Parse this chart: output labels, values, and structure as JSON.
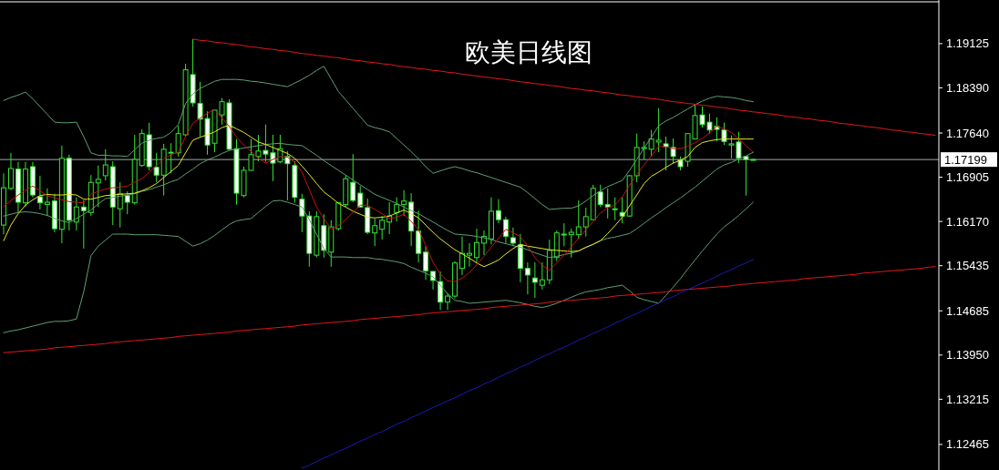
{
  "chart_data": {
    "type": "candlestick",
    "title": "欧美日线图",
    "categories": [
      null,
      null,
      null,
      null,
      null,
      null,
      null,
      null,
      null,
      null,
      null,
      null,
      null,
      null,
      null,
      null,
      null,
      null,
      null,
      null,
      null,
      null,
      null,
      null,
      null,
      null,
      null,
      null,
      null,
      null,
      null,
      null,
      null,
      null,
      null,
      null,
      null,
      null,
      null,
      null,
      null,
      null,
      null,
      null,
      null,
      null,
      null,
      null,
      null,
      null,
      null,
      null,
      null,
      null,
      null,
      null,
      null,
      null,
      null,
      null,
      null,
      null,
      null,
      null,
      null,
      null,
      null,
      null,
      null,
      null,
      null,
      null,
      null,
      null,
      null,
      null,
      null,
      null,
      null,
      null,
      null,
      null,
      null,
      null,
      null,
      null,
      null,
      null,
      null,
      null,
      null,
      null,
      null,
      null,
      null,
      null,
      null,
      null,
      null,
      null,
      null,
      null,
      null,
      null,
      null,
      null,
      null,
      null,
      null,
      null,
      null,
      null,
      null,
      null,
      null,
      null,
      null,
      null,
      null,
      null,
      null,
      null,
      null,
      null,
      null,
      null,
      null,
      null,
      null
    ],
    "ylim": [
      1.1204,
      1.1985
    ],
    "yticks": [
      1.19125,
      {
        "value": 1.1839,
        "label": "1.18390"
      },
      {
        "value": 1.1764,
        "label": "1.17640"
      },
      1.16905,
      {
        "value": 1.1617,
        "label": "1.16170"
      },
      1.15435,
      1.14685,
      {
        "value": 1.1395,
        "label": "1.13950"
      },
      1.13215,
      1.12465
    ],
    "tick_labels": "y",
    "ref_lines": [
      {
        "axis": "y",
        "value": 1.17199,
        "label": "1.17199",
        "color": "#a0a8b0"
      }
    ],
    "series": [
      {
        "type": "line",
        "color": "#5f9f73",
        "values": [
          1.1818,
          1.1823,
          1.1827,
          1.1832,
          1.1821,
          1.1808,
          1.1795,
          1.1782,
          1.1781,
          1.1781,
          1.1782,
          1.1758,
          1.1731,
          1.1727,
          1.1727,
          1.1726,
          1.1726,
          1.1725,
          1.1736,
          1.1747,
          1.1752,
          1.1755,
          1.1757,
          1.1765,
          1.1778,
          1.1813,
          1.1829,
          1.1838,
          1.1844,
          1.185,
          1.1853,
          1.1853,
          1.1853,
          1.1852,
          1.185,
          1.1849,
          1.1847,
          1.1845,
          1.1843,
          1.1841,
          1.1847,
          1.1853,
          1.186,
          1.1868,
          1.1875,
          1.1854,
          1.1833,
          1.1819,
          1.1805,
          1.1791,
          1.1777,
          1.1773,
          1.177,
          1.1766,
          1.1755,
          1.1744,
          1.1733,
          1.1721,
          1.1708,
          1.1697,
          1.1701,
          1.1705,
          1.1708,
          1.1705,
          1.1701,
          1.1698,
          1.1694,
          1.169,
          1.1686,
          1.1682,
          1.1678,
          1.1674,
          1.1665,
          1.1655,
          1.1645,
          1.1637,
          1.1638,
          1.1639,
          1.1639,
          1.1643,
          1.1651,
          1.166,
          1.1668,
          1.1675,
          1.168,
          1.1685,
          1.1702,
          1.172,
          1.1739,
          1.1757,
          1.1776,
          1.1784,
          1.179,
          1.1797,
          1.1804,
          1.1811,
          1.1817,
          1.1822,
          1.1825,
          1.1824,
          1.1823,
          1.1821,
          1.1818,
          1.1816,
          null,
          null,
          null,
          null,
          null,
          null,
          null,
          null,
          null,
          null,
          null,
          null,
          null,
          null,
          null,
          null,
          null,
          null,
          null,
          null,
          null,
          null,
          null,
          null,
          null
        ]
      },
      {
        "type": "line",
        "color": "#5f9f73",
        "values": [
          1.1626,
          1.1629,
          1.1632,
          1.1633,
          1.1632,
          1.163,
          1.1627,
          1.1622,
          1.1618,
          1.1615,
          1.1622,
          1.1629,
          1.1636,
          1.1646,
          1.1655,
          1.1657,
          1.1659,
          1.1661,
          1.1663,
          1.1667,
          1.167,
          1.1674,
          1.1678,
          1.1683,
          1.1687,
          1.1696,
          1.1704,
          1.1713,
          1.1719,
          1.1724,
          1.173,
          1.1735,
          1.1737,
          1.1739,
          1.1741,
          1.1743,
          1.1745,
          1.1746,
          1.1747,
          1.1745,
          1.1744,
          1.1743,
          1.1735,
          1.1727,
          1.1718,
          1.171,
          1.1702,
          1.1694,
          1.1686,
          1.1678,
          1.167,
          1.1662,
          1.1657,
          1.1652,
          1.1647,
          1.1641,
          1.1635,
          1.163,
          1.1623,
          1.1616,
          1.1609,
          1.1602,
          1.1596,
          1.1595,
          1.1594,
          1.1592,
          1.159,
          1.1587,
          1.1583,
          1.158,
          1.1577,
          1.1574,
          1.157,
          1.1565,
          1.1561,
          1.1557,
          1.1559,
          1.1562,
          1.1564,
          1.1568,
          1.1574,
          1.1579,
          1.1585,
          1.1589,
          1.1591,
          1.1594,
          1.1597,
          1.1605,
          1.1614,
          1.1623,
          1.1631,
          1.164,
          1.1648,
          1.1656,
          1.1665,
          1.1674,
          1.1684,
          1.1694,
          1.1704,
          1.1711,
          1.1715,
          1.1721,
          1.1726,
          1.1732,
          null,
          null,
          null,
          null,
          null,
          null,
          null,
          null,
          null,
          null,
          null,
          null,
          null,
          null,
          null,
          null,
          null,
          null,
          null,
          null,
          null,
          null,
          null,
          null,
          null
        ]
      },
      {
        "type": "line",
        "color": "#5f9f73",
        "values": [
          1.1432,
          1.1435,
          1.1437,
          1.144,
          1.1443,
          1.1446,
          1.1449,
          1.1451,
          1.1451,
          1.1452,
          1.1455,
          1.15,
          1.156,
          1.1576,
          1.1586,
          1.1596,
          1.1596,
          1.1596,
          1.1595,
          1.1595,
          1.1595,
          1.1595,
          1.1594,
          1.1593,
          1.1592,
          1.1584,
          1.1576,
          1.158,
          1.1586,
          1.1594,
          1.1603,
          1.1612,
          1.1618,
          1.162,
          1.1622,
          1.1632,
          1.1642,
          1.1651,
          1.1652,
          1.1649,
          1.1645,
          1.1641,
          1.162,
          1.1596,
          1.1572,
          1.1558,
          1.1558,
          1.1558,
          1.1557,
          1.1557,
          1.1557,
          1.1555,
          1.1554,
          1.1552,
          1.155,
          1.1547,
          1.1541,
          1.1536,
          1.1531,
          1.1525,
          1.1511,
          1.1497,
          1.1486,
          1.1484,
          1.1481,
          1.1482,
          1.1483,
          1.1484,
          1.1485,
          1.1486,
          1.1484,
          1.1482,
          1.1479,
          1.1476,
          1.1474,
          1.1477,
          1.1481,
          1.1486,
          1.1491,
          1.1496,
          1.15,
          1.1502,
          1.1504,
          1.1507,
          1.1509,
          1.1511,
          1.1502,
          1.1491,
          1.1487,
          1.1484,
          1.1481,
          1.1494,
          1.1508,
          1.1522,
          1.1538,
          1.1553,
          1.1568,
          1.1582,
          1.1596,
          1.1608,
          1.1617,
          1.1627,
          1.1638,
          1.1649,
          null,
          null,
          null,
          null,
          null,
          null,
          null,
          null,
          null,
          null,
          null,
          null,
          null,
          null,
          null,
          null,
          null,
          null,
          null,
          null,
          null,
          null,
          null,
          null,
          null
        ]
      },
      {
        "type": "line",
        "color": "#e8e820",
        "values": [
          1.1585,
          1.1611,
          1.163,
          1.1644,
          1.1653,
          1.166,
          1.1662,
          1.1661,
          1.1661,
          1.1662,
          1.1661,
          1.1654,
          1.1654,
          1.1657,
          1.166,
          1.1661,
          1.1662,
          1.1663,
          1.1664,
          1.1668,
          1.1673,
          1.168,
          1.169,
          1.17,
          1.171,
          1.1731,
          1.1752,
          1.1757,
          1.1761,
          1.1766,
          1.1773,
          1.1777,
          1.1771,
          1.1765,
          1.1757,
          1.1749,
          1.1745,
          1.174,
          1.1735,
          1.173,
          1.1722,
          1.1709,
          1.1695,
          1.168,
          1.1666,
          1.1657,
          1.1647,
          1.1641,
          1.1634,
          1.1629,
          1.1624,
          1.1623,
          1.1624,
          1.1626,
          1.1631,
          1.1636,
          1.163,
          1.1623,
          1.1611,
          1.1599,
          1.1588,
          1.1579,
          1.157,
          1.1563,
          1.1556,
          1.1548,
          1.1542,
          1.1547,
          1.1553,
          1.1563,
          1.1572,
          1.1579,
          1.1576,
          1.1574,
          1.1572,
          1.157,
          1.1569,
          1.1568,
          1.1567,
          1.1568,
          1.1574,
          1.1579,
          1.1585,
          1.1597,
          1.161,
          1.1624,
          1.1643,
          1.1661,
          1.168,
          1.1692,
          1.1699,
          1.1707,
          1.1714,
          1.1719,
          1.1725,
          1.174,
          1.1748,
          1.1751,
          1.1753,
          1.1754,
          1.1754,
          1.1754,
          1.1754,
          1.1754,
          null,
          null,
          null,
          null,
          null,
          null,
          null,
          null,
          null,
          null,
          null,
          null,
          null,
          null,
          null,
          null,
          null,
          null,
          null,
          null,
          null,
          null,
          null,
          null,
          null
        ]
      },
      {
        "type": "line",
        "color": "#c81010",
        "values": [
          1.1642,
          1.1652,
          1.1661,
          1.1669,
          1.1676,
          1.1668,
          1.166,
          1.1656,
          1.1653,
          1.165,
          1.1649,
          1.1648,
          1.1662,
          1.1667,
          1.1671,
          1.1673,
          1.1674,
          1.1676,
          1.1682,
          1.1688,
          1.1699,
          1.171,
          1.1721,
          1.1728,
          1.1732,
          1.1758,
          1.178,
          1.1789,
          1.1797,
          1.1803,
          1.1789,
          1.1775,
          1.1757,
          1.1744,
          1.1733,
          1.1722,
          1.1714,
          1.172,
          1.1725,
          1.1724,
          1.1715,
          1.1699,
          1.167,
          1.1641,
          1.1622,
          1.1604,
          1.161,
          1.162,
          1.1632,
          1.1644,
          1.1644,
          1.1637,
          1.163,
          1.1622,
          1.1624,
          1.1629,
          1.1617,
          1.1604,
          1.1577,
          1.1549,
          1.153,
          1.1518,
          1.1517,
          1.1523,
          1.1532,
          1.1545,
          1.1559,
          1.1574,
          1.1589,
          1.1604,
          1.1598,
          1.1592,
          1.1576,
          1.1557,
          1.1544,
          1.1536,
          1.1548,
          1.1561,
          1.1575,
          1.1589,
          1.1603,
          1.1617,
          1.1631,
          1.164,
          1.1644,
          1.1658,
          1.1677,
          1.1695,
          1.1711,
          1.1726,
          1.1742,
          1.1741,
          1.1738,
          1.1738,
          1.1742,
          1.1748,
          1.1755,
          1.1764,
          1.1775,
          1.1771,
          1.1765,
          1.1754,
          1.1743,
          1.1732,
          null,
          null,
          null,
          null,
          null,
          null,
          null,
          null,
          null,
          null,
          null,
          null,
          null,
          null,
          null,
          null,
          null,
          null,
          null,
          null,
          null,
          null,
          null,
          null,
          null
        ]
      },
      {
        "type": "line",
        "color": "#e01818",
        "values": [
          null,
          null,
          null,
          null,
          null,
          null,
          null,
          null,
          null,
          null,
          null,
          null,
          null,
          null,
          null,
          null,
          null,
          null,
          null,
          null,
          null,
          null,
          null,
          null,
          null,
          null,
          1.192,
          1.1918,
          1.1917,
          1.1915,
          1.1914,
          1.1912,
          1.1911,
          1.1909,
          1.1907,
          1.1906,
          1.1904,
          1.1903,
          1.1901,
          1.19,
          1.1898,
          1.1896,
          1.1895,
          1.1893,
          1.1892,
          1.189,
          1.1889,
          1.1887,
          1.1885,
          1.1884,
          1.1882,
          1.1881,
          1.1879,
          1.1878,
          1.1876,
          1.1874,
          1.1873,
          1.1871,
          1.187,
          1.1868,
          1.1867,
          1.1865,
          1.1864,
          1.1862,
          1.186,
          1.1859,
          1.1857,
          1.1856,
          1.1854,
          1.1853,
          1.1851,
          1.1849,
          1.1848,
          1.1846,
          1.1845,
          1.1843,
          1.1842,
          1.184,
          1.1838,
          1.1837,
          1.1835,
          1.1834,
          1.1832,
          1.1831,
          1.1829,
          1.1827,
          1.1826,
          1.1824,
          1.1823,
          1.1821,
          1.182,
          1.1818,
          1.1816,
          1.1815,
          1.1813,
          1.1812,
          1.181,
          1.1809,
          1.1807,
          1.1806,
          1.1804,
          1.1802,
          1.1801,
          1.1799,
          1.1798,
          1.1796,
          1.1795,
          1.1793,
          1.1791,
          1.179,
          1.1788,
          1.1787,
          1.1785,
          1.1784,
          1.1782,
          1.178,
          1.1779,
          1.1777,
          1.1776,
          1.1774,
          1.1773,
          1.1771,
          1.1769,
          1.1768,
          1.1766,
          1.1765,
          1.1763,
          1.1762,
          1.176
        ]
      },
      {
        "type": "line",
        "color": "#e01818",
        "values": [
          1.1399,
          1.14,
          1.1401,
          1.1402,
          1.1403,
          1.1404,
          1.1405,
          1.1407,
          1.1408,
          1.1409,
          1.141,
          1.1411,
          1.1412,
          1.1413,
          1.1414,
          1.1416,
          1.1417,
          1.1418,
          1.1419,
          1.142,
          1.1421,
          1.1422,
          1.1423,
          1.1424,
          1.1426,
          1.1427,
          1.1428,
          1.1429,
          1.143,
          1.1431,
          1.1432,
          1.1433,
          1.1435,
          1.1436,
          1.1437,
          1.1438,
          1.1439,
          1.144,
          1.1441,
          1.1442,
          1.1443,
          1.1445,
          1.1446,
          1.1447,
          1.1448,
          1.1449,
          1.145,
          1.1451,
          1.1452,
          1.1454,
          1.1455,
          1.1456,
          1.1457,
          1.1458,
          1.1459,
          1.146,
          1.1461,
          1.1462,
          1.1464,
          1.1465,
          1.1466,
          1.1467,
          1.1468,
          1.1469,
          1.147,
          1.1471,
          1.1472,
          1.1474,
          1.1475,
          1.1476,
          1.1477,
          1.1478,
          1.1479,
          1.148,
          1.1481,
          1.1483,
          1.1484,
          1.1485,
          1.1486,
          1.1487,
          1.1488,
          1.1489,
          1.149,
          1.1491,
          1.1493,
          1.1494,
          1.1495,
          1.1496,
          1.1497,
          1.1498,
          1.1499,
          1.15,
          1.1502,
          1.1503,
          1.1504,
          1.1505,
          1.1506,
          1.1507,
          1.1508,
          1.1509,
          1.151,
          1.1512,
          1.1513,
          1.1514,
          1.1515,
          1.1516,
          1.1517,
          1.1518,
          1.1519,
          1.152,
          1.1522,
          1.1523,
          1.1524,
          1.1525,
          1.1526,
          1.1527,
          1.1528,
          1.1529,
          1.1531,
          1.1532,
          1.1533,
          1.1534,
          1.1535,
          1.1536,
          1.1537,
          1.1538,
          1.1539,
          1.1541,
          1.1542
        ]
      },
      {
        "type": "line",
        "color": "#1a1ab4",
        "values": [
          null,
          null,
          null,
          null,
          null,
          null,
          null,
          null,
          null,
          null,
          null,
          null,
          null,
          null,
          null,
          null,
          null,
          null,
          null,
          null,
          null,
          null,
          null,
          null,
          null,
          null,
          null,
          null,
          null,
          null,
          null,
          null,
          null,
          null,
          null,
          null,
          null,
          null,
          null,
          null,
          null,
          1.1207,
          1.1212,
          1.1218,
          1.1224,
          1.1229,
          1.1235,
          1.124,
          1.1246,
          1.1252,
          1.1257,
          1.1263,
          1.1268,
          1.1274,
          1.128,
          1.1285,
          1.1291,
          1.1296,
          1.1302,
          1.1308,
          1.1313,
          1.1319,
          1.1324,
          1.133,
          1.1336,
          1.1341,
          1.1347,
          1.1352,
          1.1358,
          1.1364,
          1.1369,
          1.1375,
          1.138,
          1.1386,
          1.1392,
          1.1397,
          1.1403,
          1.1408,
          1.1414,
          1.142,
          1.1425,
          1.1431,
          1.1436,
          1.1442,
          1.1448,
          1.1453,
          1.1459,
          1.1464,
          1.147,
          1.1476,
          1.1481,
          1.1487,
          1.1492,
          1.1498,
          1.1504,
          1.1509,
          1.1515,
          1.152,
          1.1526,
          1.1532,
          1.1537,
          1.1543,
          1.1548,
          1.1554,
          null,
          null,
          null,
          null,
          null,
          null,
          null,
          null,
          null,
          null,
          null,
          null,
          null,
          null,
          null,
          null,
          null,
          null,
          null,
          null,
          null,
          null,
          null,
          null,
          null
        ]
      },
      {
        "type": "candlestick",
        "color": "#33e633",
        "ohlc": [
          [
            1.1611,
            1.1697,
            1.1596,
            1.1673
          ],
          [
            1.1672,
            1.1731,
            1.1669,
            1.1705
          ],
          [
            1.1704,
            1.1716,
            1.1632,
            1.1649
          ],
          [
            1.1648,
            1.1716,
            1.1641,
            1.1704
          ],
          [
            1.1708,
            1.1716,
            1.1657,
            1.1661
          ],
          [
            1.1658,
            1.1693,
            1.1637,
            1.1648
          ],
          [
            1.1645,
            1.1672,
            1.1626,
            1.1649
          ],
          [
            1.1651,
            1.1663,
            1.1599,
            1.1605
          ],
          [
            1.1604,
            1.1743,
            1.1581,
            1.1722
          ],
          [
            1.1722,
            1.1728,
            1.1602,
            1.1619
          ],
          [
            1.1616,
            1.1657,
            1.1602,
            1.1641
          ],
          [
            1.1641,
            1.1652,
            1.1572,
            1.1635
          ],
          [
            1.1632,
            1.1694,
            1.1626,
            1.1682
          ],
          [
            1.1681,
            1.171,
            1.1641,
            1.1687
          ],
          [
            1.1693,
            1.1737,
            1.1685,
            1.1711
          ],
          [
            1.1708,
            1.1717,
            1.1611,
            1.1641
          ],
          [
            1.1638,
            1.1682,
            1.1607,
            1.1663
          ],
          [
            1.166,
            1.1667,
            1.1629,
            1.1649
          ],
          [
            1.1648,
            1.1761,
            1.1645,
            1.172
          ],
          [
            1.171,
            1.177,
            1.1708,
            1.1763
          ],
          [
            1.1761,
            1.1781,
            1.1702,
            1.1708
          ],
          [
            1.1707,
            1.1731,
            1.1682,
            1.1694
          ],
          [
            1.1694,
            1.1746,
            1.166,
            1.1737
          ],
          [
            1.1731,
            1.1747,
            1.1697,
            1.1732
          ],
          [
            1.1731,
            1.1776,
            1.1725,
            1.1763
          ],
          [
            1.1761,
            1.1879,
            1.1758,
            1.1869
          ],
          [
            1.1861,
            1.192,
            1.1808,
            1.1814
          ],
          [
            1.1813,
            1.1849,
            1.1758,
            1.1787
          ],
          [
            1.1788,
            1.18,
            1.1728,
            1.1744
          ],
          [
            1.1747,
            1.1803,
            1.1732,
            1.1802
          ],
          [
            1.1794,
            1.1822,
            1.1778,
            1.1816
          ],
          [
            1.1814,
            1.182,
            1.1735,
            1.1737
          ],
          [
            1.1738,
            1.1754,
            1.1645,
            1.1664
          ],
          [
            1.166,
            1.1708,
            1.1657,
            1.1702
          ],
          [
            1.1702,
            1.1754,
            1.1701,
            1.1728
          ],
          [
            1.1725,
            1.1761,
            1.1717,
            1.1734
          ],
          [
            1.1735,
            1.1778,
            1.1716,
            1.1729
          ],
          [
            1.1731,
            1.1761,
            1.1684,
            1.1714
          ],
          [
            1.1716,
            1.1761,
            1.1714,
            1.1738
          ],
          [
            1.1725,
            1.1734,
            1.1652,
            1.1713
          ],
          [
            1.171,
            1.1717,
            1.1648,
            1.1657
          ],
          [
            1.1654,
            1.1663,
            1.1599,
            1.1626
          ],
          [
            1.1626,
            1.1634,
            1.1542,
            1.1564
          ],
          [
            1.1561,
            1.1634,
            1.1557,
            1.1625
          ],
          [
            1.161,
            1.1629,
            1.1557,
            1.1569
          ],
          [
            1.1566,
            1.1619,
            1.1542,
            1.1608
          ],
          [
            1.1605,
            1.1649,
            1.1602,
            1.1648
          ],
          [
            1.1645,
            1.1694,
            1.1641,
            1.1688
          ],
          [
            1.1682,
            1.1729,
            1.1649,
            1.1652
          ],
          [
            1.1664,
            1.1676,
            1.164,
            1.1641
          ],
          [
            1.164,
            1.1655,
            1.1596,
            1.1599
          ],
          [
            1.1598,
            1.1622,
            1.1576,
            1.161
          ],
          [
            1.1604,
            1.1626,
            1.1587,
            1.1619
          ],
          [
            1.1616,
            1.1649,
            1.1596,
            1.1626
          ],
          [
            1.1632,
            1.1657,
            1.1617,
            1.1645
          ],
          [
            1.1645,
            1.1669,
            1.1626,
            1.1651
          ],
          [
            1.1649,
            1.1664,
            1.1576,
            1.1601
          ],
          [
            1.1601,
            1.1635,
            1.1549,
            1.1564
          ],
          [
            1.1566,
            1.1576,
            1.152,
            1.1535
          ],
          [
            1.1534,
            1.1534,
            1.1504,
            1.1519
          ],
          [
            1.1517,
            1.1534,
            1.147,
            1.1483
          ],
          [
            1.1483,
            1.1498,
            1.147,
            1.1493
          ],
          [
            1.1493,
            1.1551,
            1.1489,
            1.1548
          ],
          [
            1.1539,
            1.1592,
            1.1528,
            1.1564
          ],
          [
            1.1561,
            1.1581,
            1.1542,
            1.1564
          ],
          [
            1.1557,
            1.1605,
            1.1549,
            1.1582
          ],
          [
            1.1581,
            1.1602,
            1.1561,
            1.1592
          ],
          [
            1.1588,
            1.1657,
            1.1579,
            1.1634
          ],
          [
            1.1635,
            1.1654,
            1.1614,
            1.162
          ],
          [
            1.162,
            1.1625,
            1.1581,
            1.1592
          ],
          [
            1.159,
            1.1607,
            1.1576,
            1.1581
          ],
          [
            1.1578,
            1.1596,
            1.1516,
            1.1539
          ],
          [
            1.1539,
            1.1549,
            1.1496,
            1.1528
          ],
          [
            1.1523,
            1.1549,
            1.149,
            1.1516
          ],
          [
            1.1511,
            1.1549,
            1.1504,
            1.152
          ],
          [
            1.152,
            1.1587,
            1.1513,
            1.1569
          ],
          [
            1.1557,
            1.1602,
            1.1551,
            1.1598
          ],
          [
            1.1595,
            1.1614,
            1.1576,
            1.1596
          ],
          [
            1.1595,
            1.1605,
            1.1557,
            1.1599
          ],
          [
            1.1595,
            1.1652,
            1.1588,
            1.1608
          ],
          [
            1.1608,
            1.164,
            1.1592,
            1.1625
          ],
          [
            1.162,
            1.1678,
            1.1619,
            1.1672
          ],
          [
            1.1666,
            1.1678,
            1.1641,
            1.1645
          ],
          [
            1.1645,
            1.1672,
            1.1622,
            1.1641
          ],
          [
            1.1637,
            1.1657,
            1.1619,
            1.1638
          ],
          [
            1.1632,
            1.1657,
            1.1614,
            1.1626
          ],
          [
            1.1626,
            1.1694,
            1.1625,
            1.1693
          ],
          [
            1.1693,
            1.1763,
            1.1682,
            1.174
          ],
          [
            1.1738,
            1.175,
            1.172,
            1.174
          ],
          [
            1.1737,
            1.1769,
            1.1725,
            1.1754
          ],
          [
            1.1749,
            1.1805,
            1.1732,
            1.1752
          ],
          [
            1.1746,
            1.1758,
            1.1702,
            1.1741
          ],
          [
            1.174,
            1.1755,
            1.1713,
            1.1725
          ],
          [
            1.1719,
            1.1725,
            1.1702,
            1.1708
          ],
          [
            1.1717,
            1.1763,
            1.1708,
            1.1763
          ],
          [
            1.1754,
            1.1811,
            1.1754,
            1.1793
          ],
          [
            1.1794,
            1.1808,
            1.1773,
            1.1778
          ],
          [
            1.1782,
            1.1796,
            1.1763,
            1.1769
          ],
          [
            1.1775,
            1.179,
            1.175,
            1.177
          ],
          [
            1.1769,
            1.1781,
            1.1744,
            1.175
          ],
          [
            1.1744,
            1.176,
            1.1722,
            1.1746
          ],
          [
            1.1749,
            1.1766,
            1.1714,
            1.1722
          ],
          [
            1.1725,
            1.1726,
            1.166,
            1.172
          ],
          [
            1.172,
            1.1721,
            1.1719,
            1.172
          ],
          null,
          null,
          null,
          null,
          null,
          null,
          null,
          null,
          null,
          null,
          null,
          null,
          null,
          null,
          null,
          null,
          null,
          null,
          null,
          null,
          null,
          null,
          null,
          null,
          null
        ]
      }
    ]
  }
}
